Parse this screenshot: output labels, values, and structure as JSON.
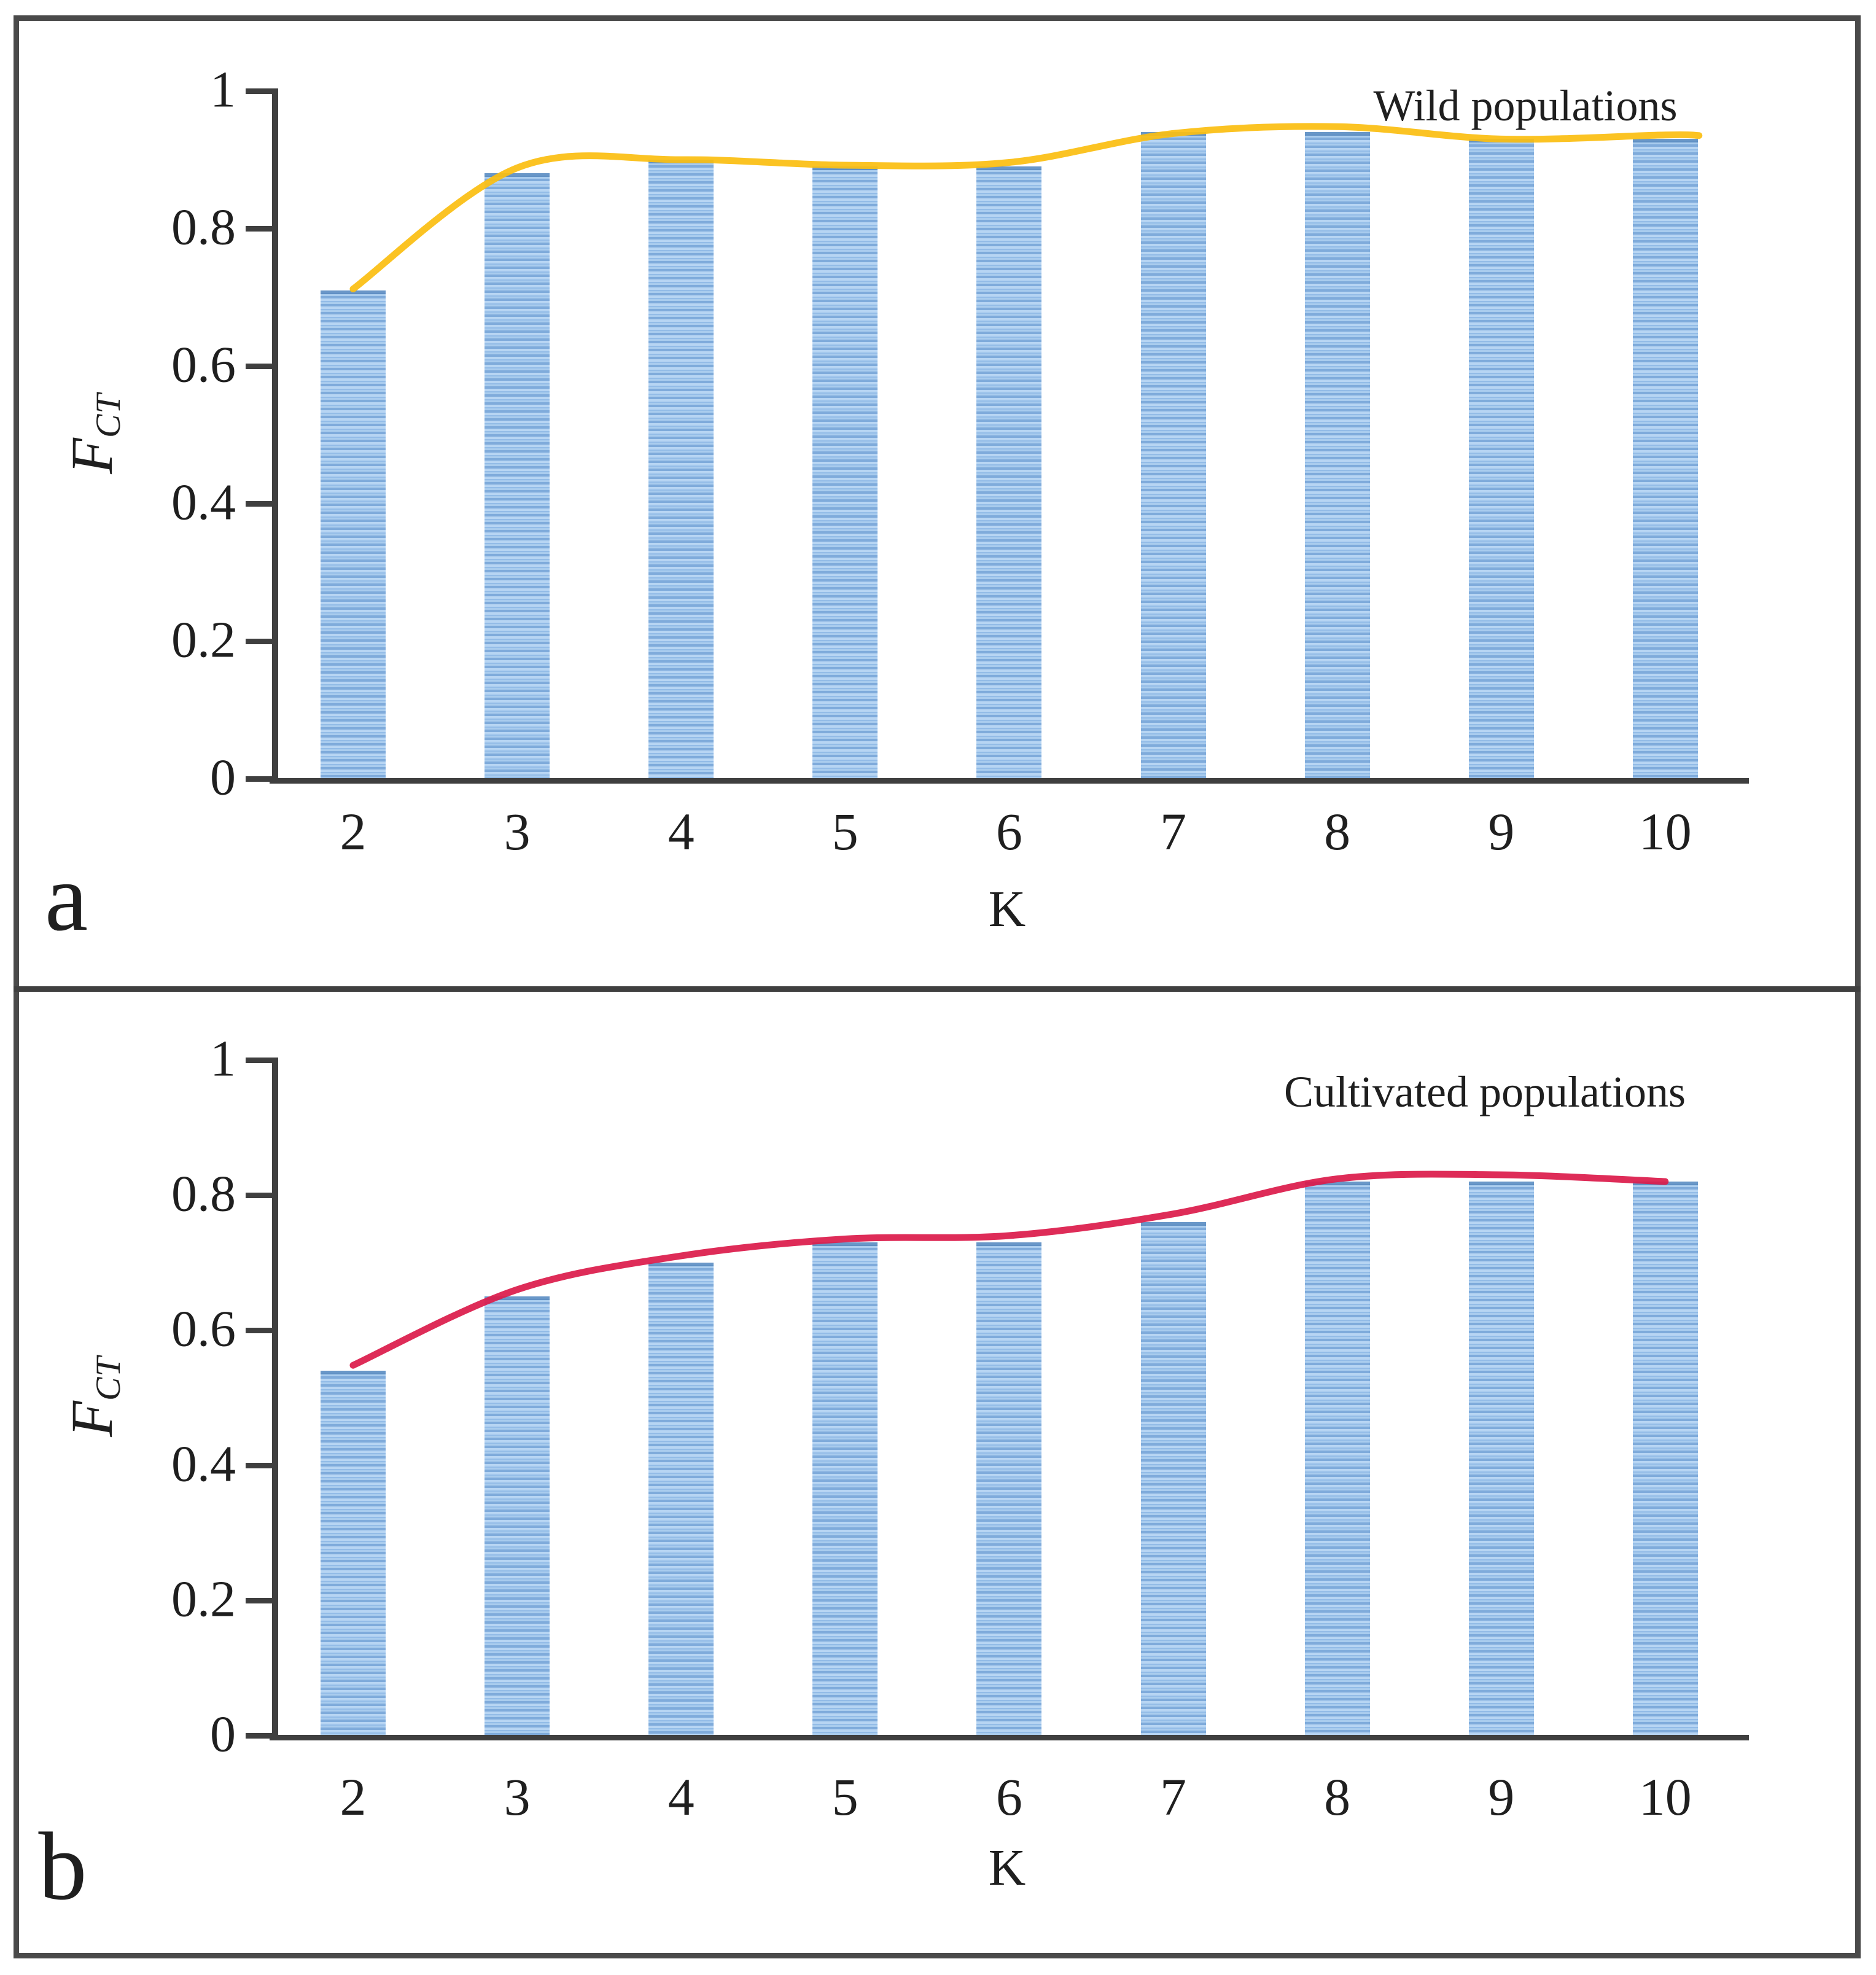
{
  "panels": [
    {
      "corner_label": "a",
      "annotation": "Wild populations",
      "xlabel": "K",
      "ylabel_main": "F",
      "ylabel_sub": "CT",
      "ytick_labels": [
        "0",
        "0.2",
        "0.4",
        "0.6",
        "0.8",
        "1"
      ],
      "categories": [
        "2",
        "3",
        "4",
        "5",
        "6",
        "7",
        "8",
        "9",
        "10"
      ]
    },
    {
      "corner_label": "b",
      "annotation": "Cultivated populations",
      "xlabel": "K",
      "ylabel_main": "F",
      "ylabel_sub": "CT",
      "ytick_labels": [
        "0",
        "0.2",
        "0.4",
        "0.6",
        "0.8",
        "1"
      ],
      "categories": [
        "2",
        "3",
        "4",
        "5",
        "6",
        "7",
        "8",
        "9",
        "10"
      ]
    }
  ],
  "colors": {
    "bar_stripe_light": "#b7d5f3",
    "bar_stripe_dark": "#7fabdb",
    "bar_top_cap": "#4f82b9",
    "wild_line": "#FBBE12",
    "cultivated_line": "#DC1C4B",
    "axis": "#3f3f3f",
    "border": "#4a4a4a",
    "text": "#1f1f1f"
  },
  "chart_data": [
    {
      "type": "bar",
      "title": "Wild populations",
      "xlabel": "K",
      "ylabel": "F_CT",
      "categories": [
        2,
        3,
        4,
        5,
        6,
        7,
        8,
        9,
        10
      ],
      "ylim": [
        0,
        1
      ],
      "yticks": [
        0,
        0.2,
        0.4,
        0.6,
        0.8,
        1
      ],
      "grid": false,
      "legend": "none",
      "series": [
        {
          "name": "F_CT bars",
          "type": "bar",
          "pattern": "blue-horizontal-stripes",
          "values": [
            0.71,
            0.88,
            0.9,
            0.89,
            0.89,
            0.94,
            0.94,
            0.93,
            0.93
          ]
        },
        {
          "name": "smoothed trend",
          "type": "line",
          "color": "#FBBE12",
          "values": [
            0.712,
            0.888,
            0.9,
            0.892,
            0.896,
            0.938,
            0.948,
            0.93,
            0.936
          ]
        }
      ]
    },
    {
      "type": "bar",
      "title": "Cultivated populations",
      "xlabel": "K",
      "ylabel": "F_CT",
      "categories": [
        2,
        3,
        4,
        5,
        6,
        7,
        8,
        9,
        10
      ],
      "ylim": [
        0,
        1
      ],
      "yticks": [
        0,
        0.2,
        0.4,
        0.6,
        0.8,
        1
      ],
      "grid": false,
      "legend": "none",
      "series": [
        {
          "name": "F_CT bars",
          "type": "bar",
          "pattern": "blue-horizontal-stripes",
          "values": [
            0.54,
            0.65,
            0.7,
            0.73,
            0.73,
            0.76,
            0.82,
            0.82,
            0.82
          ]
        },
        {
          "name": "smoothed trend",
          "type": "line",
          "color": "#DC1C4B",
          "values": [
            0.548,
            0.66,
            0.71,
            0.735,
            0.74,
            0.772,
            0.824,
            0.83,
            0.82
          ]
        }
      ]
    }
  ]
}
